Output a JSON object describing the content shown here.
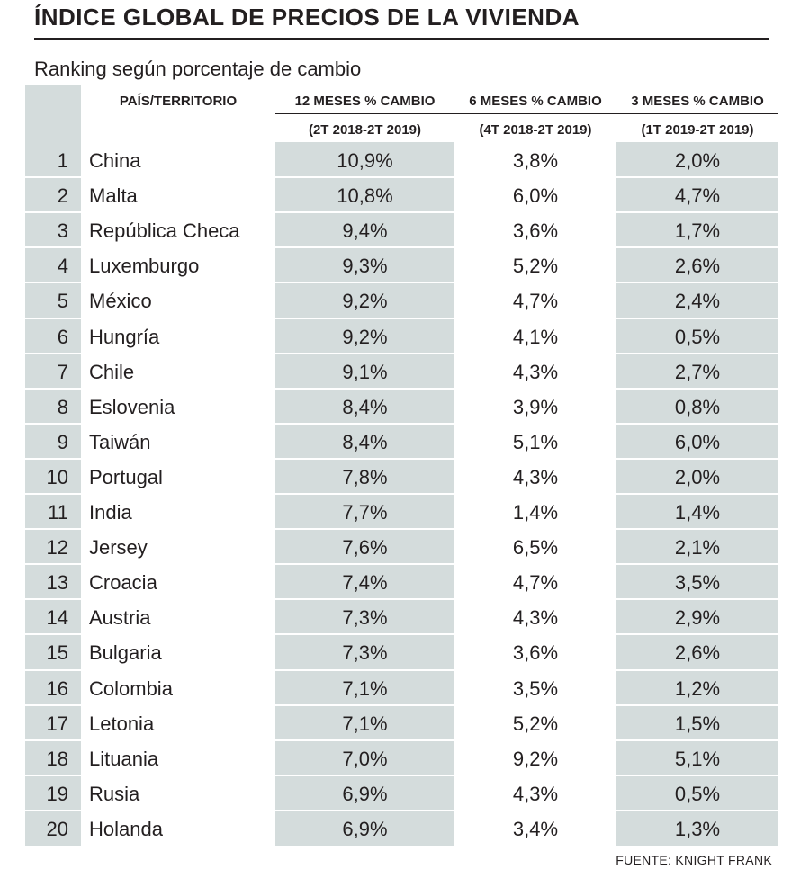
{
  "title": "ÍNDICE GLOBAL DE PRECIOS DE LA VIVIENDA",
  "subtitle": "Ranking según porcentaje de cambio",
  "source": "FUENTE: KNIGHT FRANK",
  "colors": {
    "shade": "#d4dcdc",
    "text": "#231f20"
  },
  "chart_data": {
    "type": "table",
    "columns": [
      {
        "label": "PAÍS/TERRITORIO",
        "sublabel": ""
      },
      {
        "label": "12 MESES % CAMBIO",
        "sublabel": "(2T 2018-2T 2019)"
      },
      {
        "label": "6 MESES % CAMBIO",
        "sublabel": "(4T 2018-2T 2019)"
      },
      {
        "label": "3 MESES % CAMBIO",
        "sublabel": "(1T 2019-2T 2019)"
      }
    ],
    "rows": [
      {
        "rank": "1",
        "country": "China",
        "m12": "10,9%",
        "m6": "3,8%",
        "m3": "2,0%"
      },
      {
        "rank": "2",
        "country": "Malta",
        "m12": "10,8%",
        "m6": "6,0%",
        "m3": "4,7%"
      },
      {
        "rank": "3",
        "country": "República Checa",
        "m12": "9,4%",
        "m6": "3,6%",
        "m3": "1,7%"
      },
      {
        "rank": "4",
        "country": "Luxemburgo",
        "m12": "9,3%",
        "m6": "5,2%",
        "m3": "2,6%"
      },
      {
        "rank": "5",
        "country": "México",
        "m12": "9,2%",
        "m6": "4,7%",
        "m3": "2,4%"
      },
      {
        "rank": "6",
        "country": "Hungría",
        "m12": "9,2%",
        "m6": "4,1%",
        "m3": "0,5%"
      },
      {
        "rank": "7",
        "country": "Chile",
        "m12": "9,1%",
        "m6": "4,3%",
        "m3": "2,7%"
      },
      {
        "rank": "8",
        "country": "Eslovenia",
        "m12": "8,4%",
        "m6": "3,9%",
        "m3": "0,8%"
      },
      {
        "rank": "9",
        "country": "Taiwán",
        "m12": "8,4%",
        "m6": "5,1%",
        "m3": "6,0%"
      },
      {
        "rank": "10",
        "country": "Portugal",
        "m12": "7,8%",
        "m6": "4,3%",
        "m3": "2,0%"
      },
      {
        "rank": "11",
        "country": "India",
        "m12": "7,7%",
        "m6": "1,4%",
        "m3": "1,4%"
      },
      {
        "rank": "12",
        "country": "Jersey",
        "m12": "7,6%",
        "m6": "6,5%",
        "m3": "2,1%"
      },
      {
        "rank": "13",
        "country": "Croacia",
        "m12": "7,4%",
        "m6": "4,7%",
        "m3": "3,5%"
      },
      {
        "rank": "14",
        "country": "Austria",
        "m12": "7,3%",
        "m6": "4,3%",
        "m3": "2,9%"
      },
      {
        "rank": "15",
        "country": "Bulgaria",
        "m12": "7,3%",
        "m6": "3,6%",
        "m3": "2,6%"
      },
      {
        "rank": "16",
        "country": "Colombia",
        "m12": "7,1%",
        "m6": "3,5%",
        "m3": "1,2%"
      },
      {
        "rank": "17",
        "country": "Letonia",
        "m12": "7,1%",
        "m6": "5,2%",
        "m3": "1,5%"
      },
      {
        "rank": "18",
        "country": "Lituania",
        "m12": "7,0%",
        "m6": "9,2%",
        "m3": "5,1%"
      },
      {
        "rank": "19",
        "country": "Rusia",
        "m12": "6,9%",
        "m6": "4,3%",
        "m3": "0,5%"
      },
      {
        "rank": "20",
        "country": "Holanda",
        "m12": "6,9%",
        "m6": "3,4%",
        "m3": "1,3%"
      }
    ]
  }
}
